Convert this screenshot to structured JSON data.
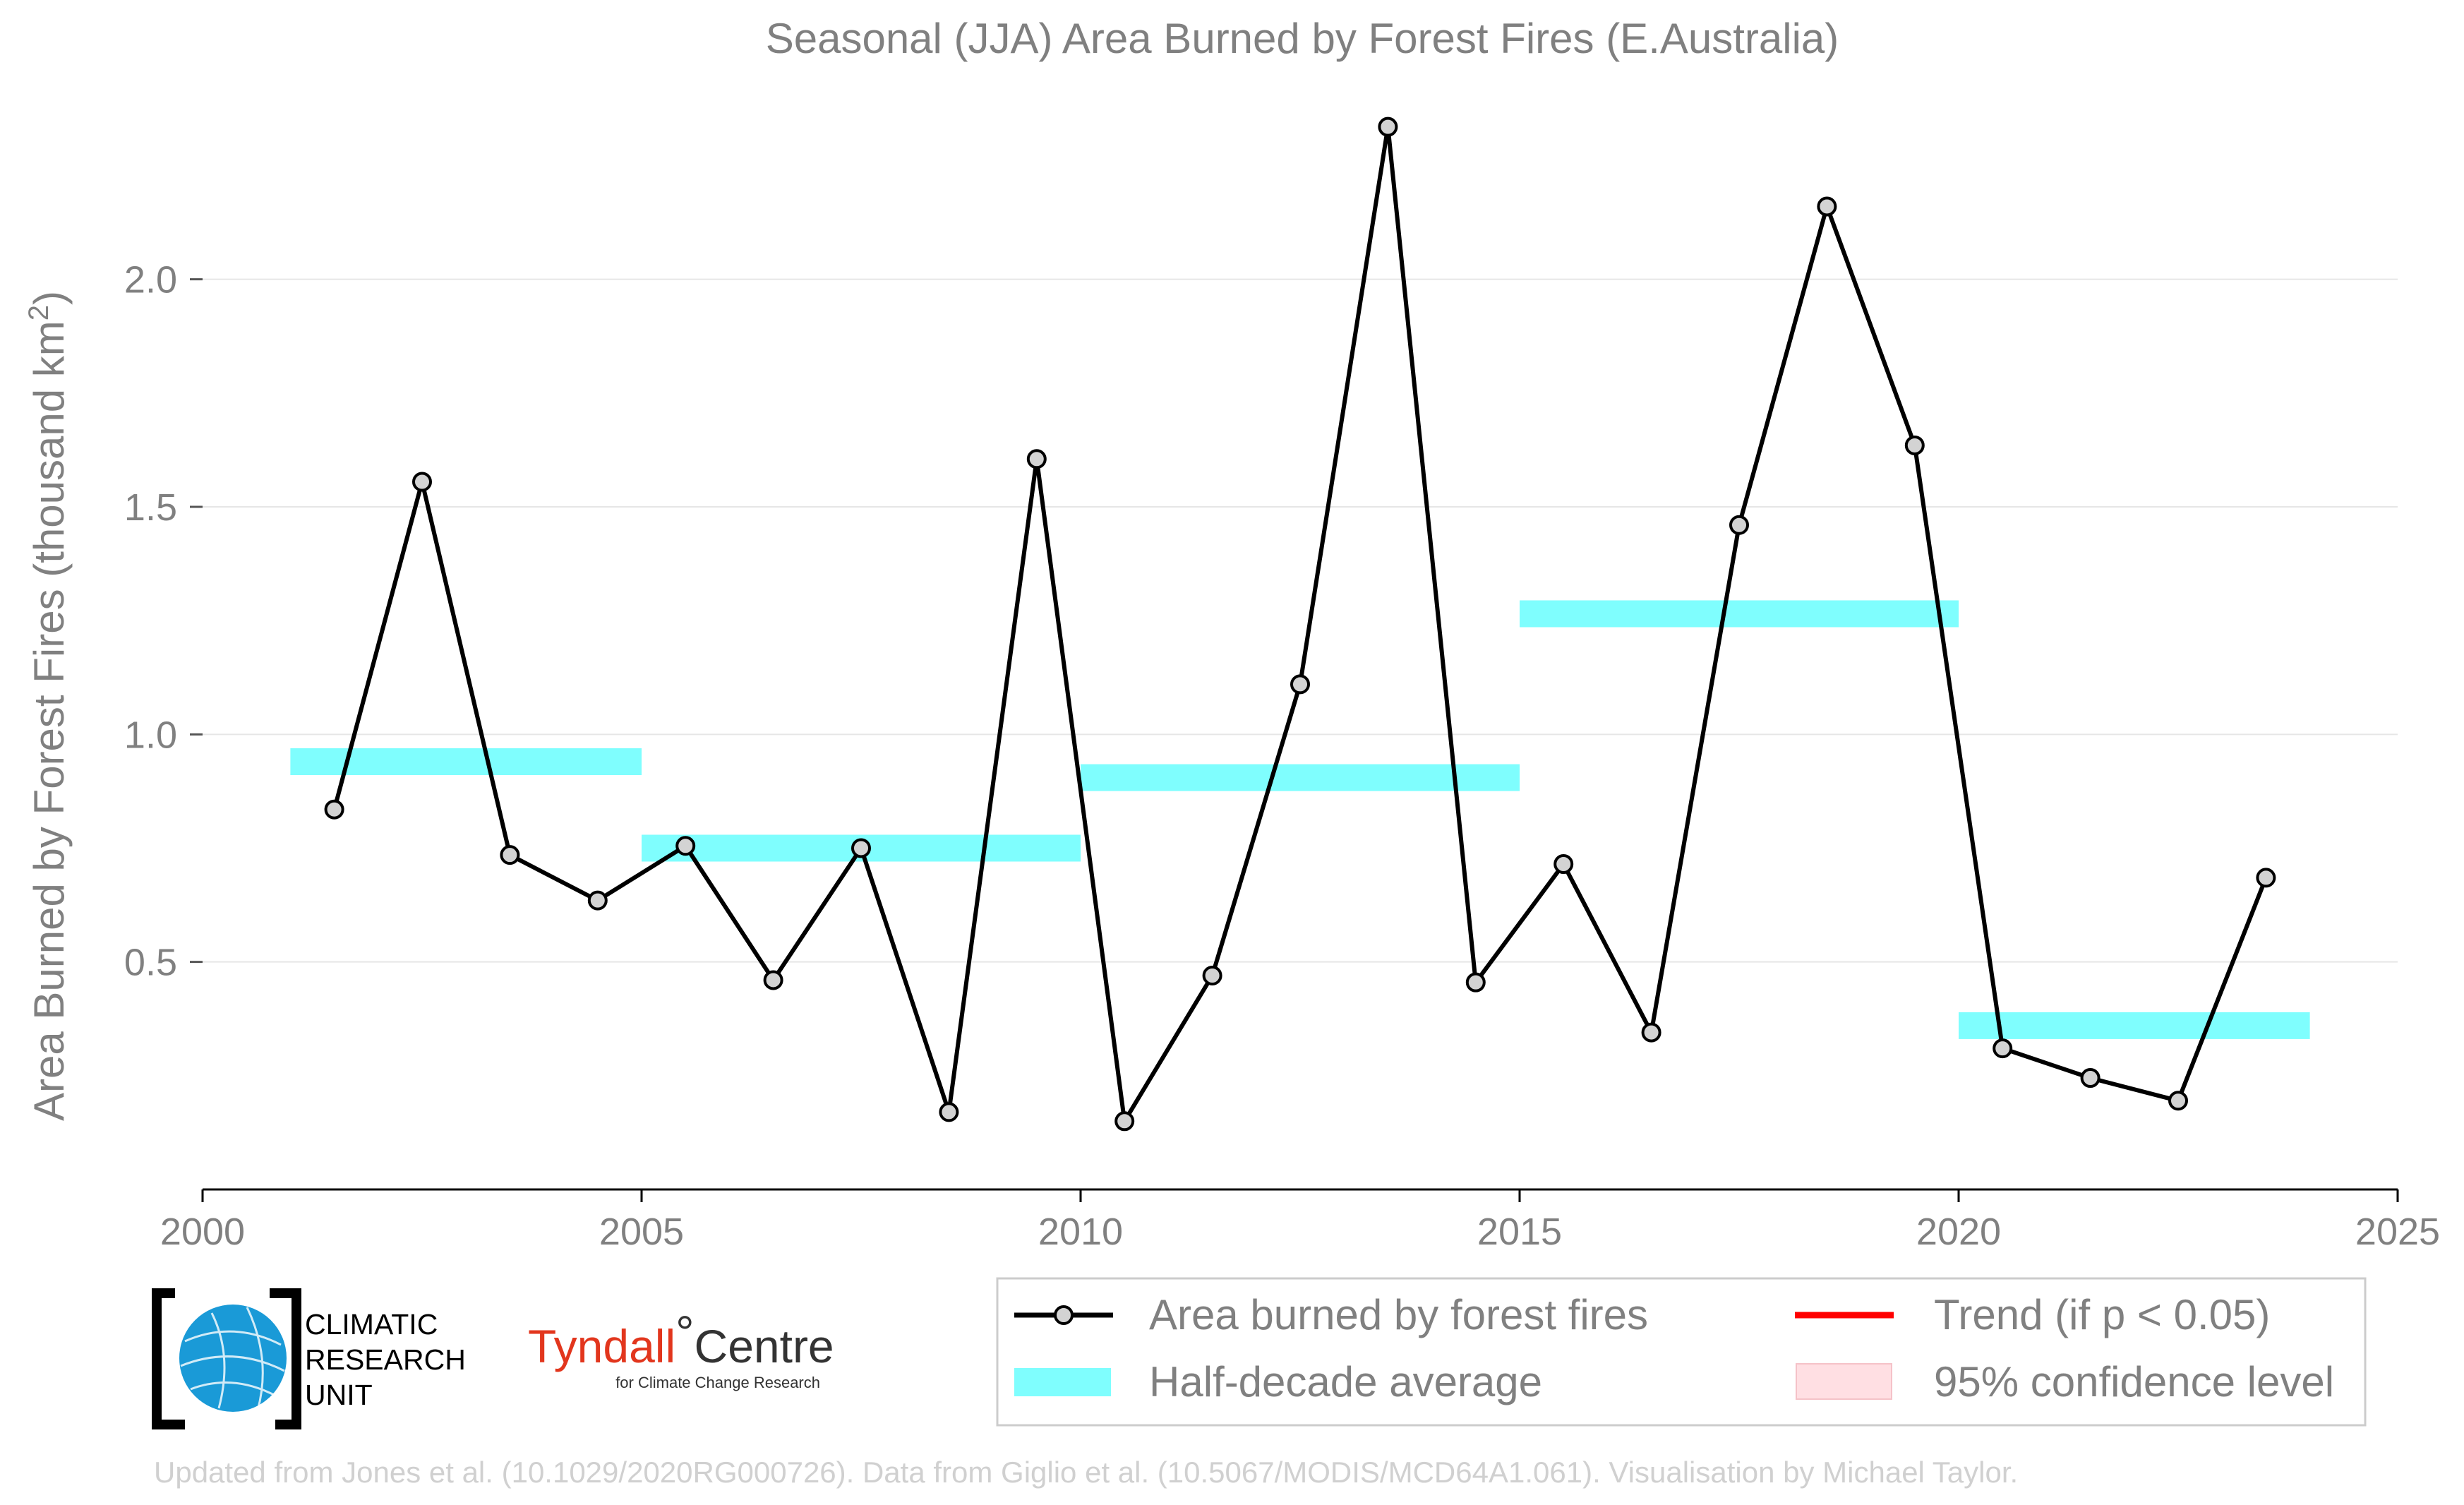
{
  "chart_data": {
    "type": "line",
    "title": "Seasonal (JJA) Area Burned by Forest Fires (E.Australia)",
    "ylabel_main": "Area Burned by Forest Fires (thousand km",
    "ylabel_sup": "2",
    "ylabel_close": ")",
    "xlim": [
      2000,
      2025
    ],
    "ylim": [
      0,
      2.35
    ],
    "x_ticks": [
      2000,
      2005,
      2010,
      2015,
      2020,
      2025
    ],
    "x_tick_labels": [
      "2000",
      "2005",
      "2010",
      "2015",
      "2020",
      "2025"
    ],
    "y_ticks": [
      0.5,
      1.0,
      1.5,
      2.0
    ],
    "y_tick_labels": [
      "0.5",
      "1.0",
      "1.5",
      "2.0"
    ],
    "grid": "horizontal",
    "series": [
      {
        "name": "Area burned by forest fires",
        "color": "#000000",
        "marker_fill": "#d3d3d3",
        "x": [
          2001.5,
          2002.5,
          2003.5,
          2004.5,
          2005.5,
          2006.5,
          2007.5,
          2008.5,
          2009.5,
          2010.5,
          2011.5,
          2012.5,
          2013.5,
          2014.5,
          2015.5,
          2016.5,
          2017.5,
          2018.5,
          2019.5,
          2020.5,
          2021.5,
          2022.5,
          2023.5
        ],
        "y": [
          0.835,
          1.555,
          0.735,
          0.635,
          0.755,
          0.46,
          0.75,
          0.17,
          1.605,
          0.15,
          0.47,
          1.11,
          2.335,
          0.455,
          0.715,
          0.345,
          1.46,
          2.16,
          1.635,
          0.31,
          0.245,
          0.195,
          0.685
        ]
      }
    ],
    "half_decade_average": {
      "name": "Half-decade average",
      "color": "#7ffefe",
      "segments": [
        {
          "x0": 2001,
          "x1": 2005,
          "y": 0.94
        },
        {
          "x0": 2005,
          "x1": 2010,
          "y": 0.75
        },
        {
          "x0": 2010,
          "x1": 2015,
          "y": 0.905
        },
        {
          "x0": 2015,
          "x1": 2020,
          "y": 1.265
        },
        {
          "x0": 2020,
          "x1": 2024,
          "y": 0.36
        }
      ]
    },
    "legend": {
      "placement": "bottom-right",
      "items": [
        {
          "label": "Area burned by forest fires",
          "kind": "line-marker",
          "color": "#000000"
        },
        {
          "label": "Trend (if p < 0.05)",
          "kind": "line",
          "color": "#ff0000"
        },
        {
          "label": "Half-decade average",
          "kind": "band",
          "color": "#7ffefe"
        },
        {
          "label": "95% confidence level",
          "kind": "patch",
          "color": "#ffdfe3"
        }
      ]
    }
  },
  "logos": {
    "cru": {
      "lines": [
        "CLIMATIC",
        "RESEARCH",
        "UNIT"
      ],
      "icon": "globe-icon"
    },
    "tyndall": {
      "name_red": "Tyndall",
      "degree": "°",
      "name_dark": "Centre",
      "sub": "for Climate Change Research"
    }
  },
  "footer": "Updated from Jones et al. (10.1029/2020RG000726). Data from Giglio et al. (10.5067/MODIS/MCD64A1.061). Visualisation by Michael Taylor."
}
